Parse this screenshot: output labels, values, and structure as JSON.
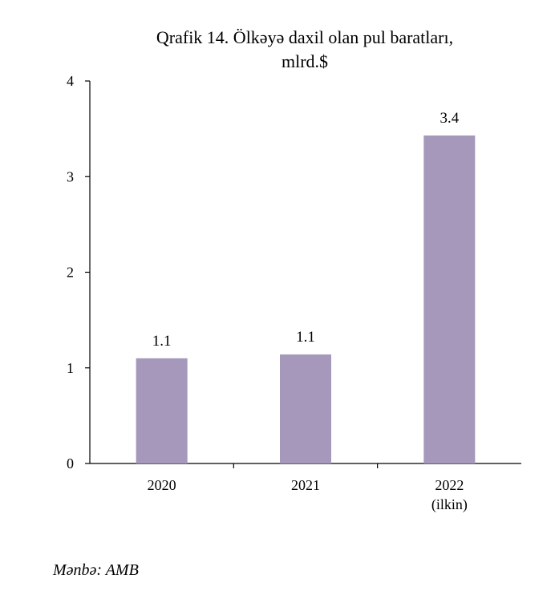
{
  "source": "Mənbə: AMB",
  "colors": {
    "bar": "#a598bb",
    "axis": "#000000"
  },
  "chart_data": {
    "type": "bar",
    "title_lines": [
      "Qrafik 14. Ölkəyə daxil olan pul baratları,",
      "mlrd.$"
    ],
    "categories": [
      [
        "2020"
      ],
      [
        "2021"
      ],
      [
        "2022",
        "(ilkin)"
      ]
    ],
    "values": [
      1.1,
      1.14,
      3.43
    ],
    "value_labels": [
      "1.1",
      "1.1",
      "3.4"
    ],
    "ylim": [
      0,
      4
    ],
    "yticks": [
      0,
      1,
      2,
      3,
      4
    ],
    "xlabel": "",
    "ylabel": "",
    "grid": false,
    "legend": "none"
  }
}
